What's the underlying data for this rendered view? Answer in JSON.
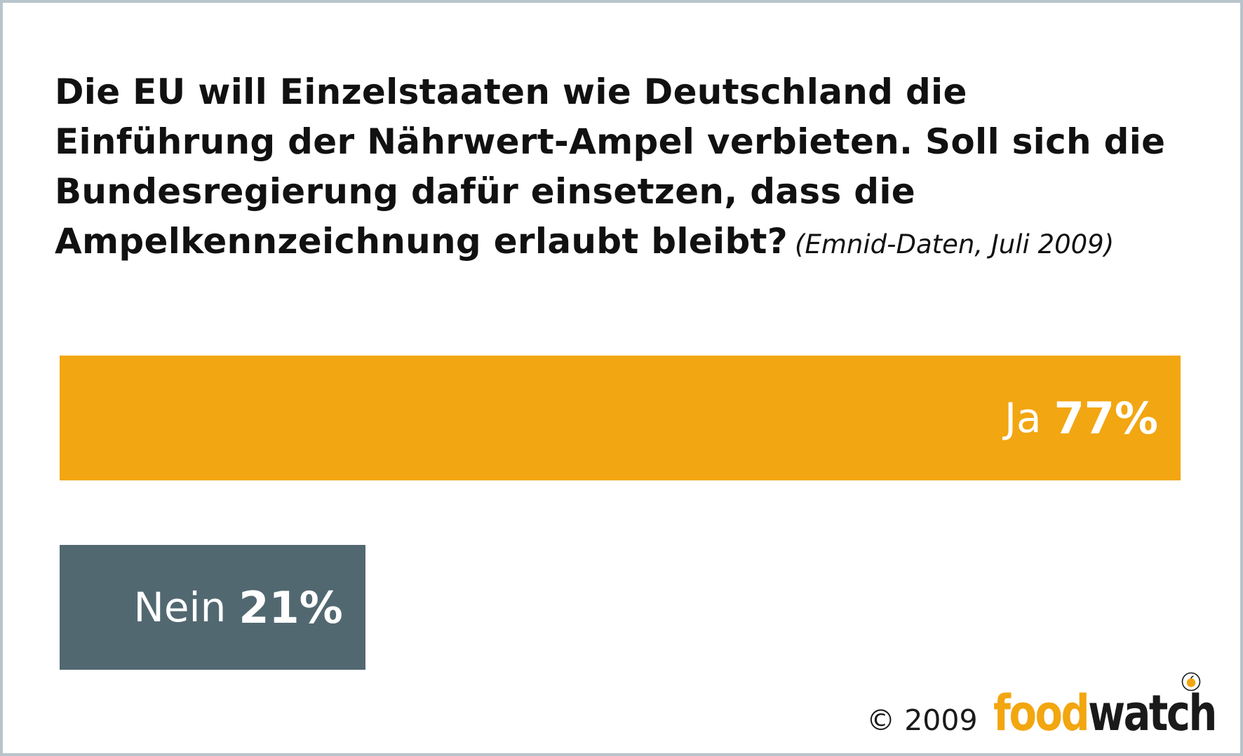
{
  "chart_data": {
    "type": "bar",
    "orientation": "horizontal",
    "title_lines": [
      "Die EU will Einzelstaaten wie Deutschland die",
      "Einführung der Nährwert-Ampel verbieten. Soll sich die",
      "Bundesregierung dafür einsetzen, dass die",
      "Ampelkennzeichnung erlaubt bleibt?"
    ],
    "source_note": "(Emnid-Daten, Juli 2009)",
    "categories": [
      "Ja",
      "Nein"
    ],
    "values": [
      77,
      21
    ],
    "value_labels": [
      "77%",
      "21%"
    ],
    "unit": "%",
    "colors": [
      "#f2a612",
      "#526871"
    ],
    "xlim": [
      0,
      100
    ],
    "grid": false,
    "legend": "none"
  },
  "footer": {
    "copyright": "© 2009",
    "logo_food": "food",
    "logo_watch": "watch",
    "logo_icon": "apple-registered-icon"
  },
  "colors": {
    "frame_border": "#b8c4cb",
    "brand_orange": "#f2a60f",
    "text": "#111111"
  }
}
